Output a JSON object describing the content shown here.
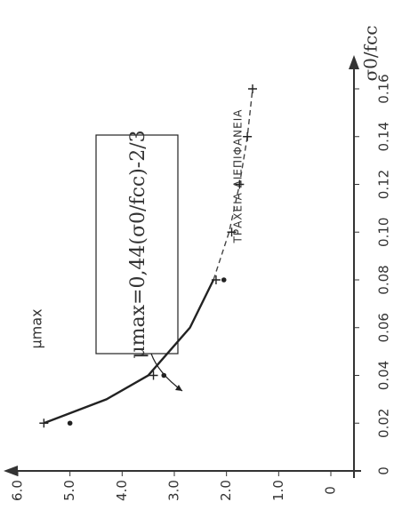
{
  "chart_data": {
    "type": "line",
    "x_label": "σ0/fcc",
    "y_label": "μmax",
    "annotation": "ΤΡΑΧΕΙΑ ΔΙΕΠΙΦΑΝΕΙΑ",
    "formula": "μmax=0,44(σ0/fcc)-2/3",
    "xlim": [
      0,
      0.16
    ],
    "ylim": [
      0,
      6
    ],
    "xticks": [
      0,
      0.02,
      0.04,
      0.06,
      0.08,
      {
        "value": 0.1,
        "label": "0.10"
      },
      0.12,
      0.14,
      0.16
    ],
    "yticks": [
      0,
      {
        "value": 1,
        "label": "1.0"
      },
      {
        "value": 2,
        "label": "2.0"
      },
      {
        "value": 3,
        "label": "3.0"
      },
      {
        "value": 4,
        "label": "4.0"
      },
      {
        "value": 5,
        "label": "5.0"
      },
      {
        "value": 6,
        "label": "6.0"
      }
    ],
    "series": [
      {
        "style": "solid",
        "color": "#222",
        "x": [
          0.02,
          0.03,
          0.04,
          0.06,
          0.08
        ],
        "values": [
          5.5,
          4.3,
          3.5,
          2.7,
          2.25
        ]
      },
      {
        "style": "dashed",
        "color": "#444",
        "x": [
          0.08,
          0.1,
          0.12,
          0.14,
          0.16
        ],
        "values": [
          2.25,
          1.95,
          1.75,
          1.6,
          1.5
        ]
      },
      {
        "style": "cross",
        "color": "#222",
        "x": [
          0.02,
          0.04,
          0.08,
          0.1,
          0.12,
          0.14,
          0.16
        ],
        "values": [
          5.5,
          3.4,
          2.2,
          1.9,
          1.75,
          1.6,
          1.5
        ]
      },
      {
        "style": "dot",
        "color": "#222",
        "x": [
          0.02,
          0.04,
          0.08
        ],
        "values": [
          5.0,
          3.2,
          2.05
        ]
      }
    ]
  }
}
